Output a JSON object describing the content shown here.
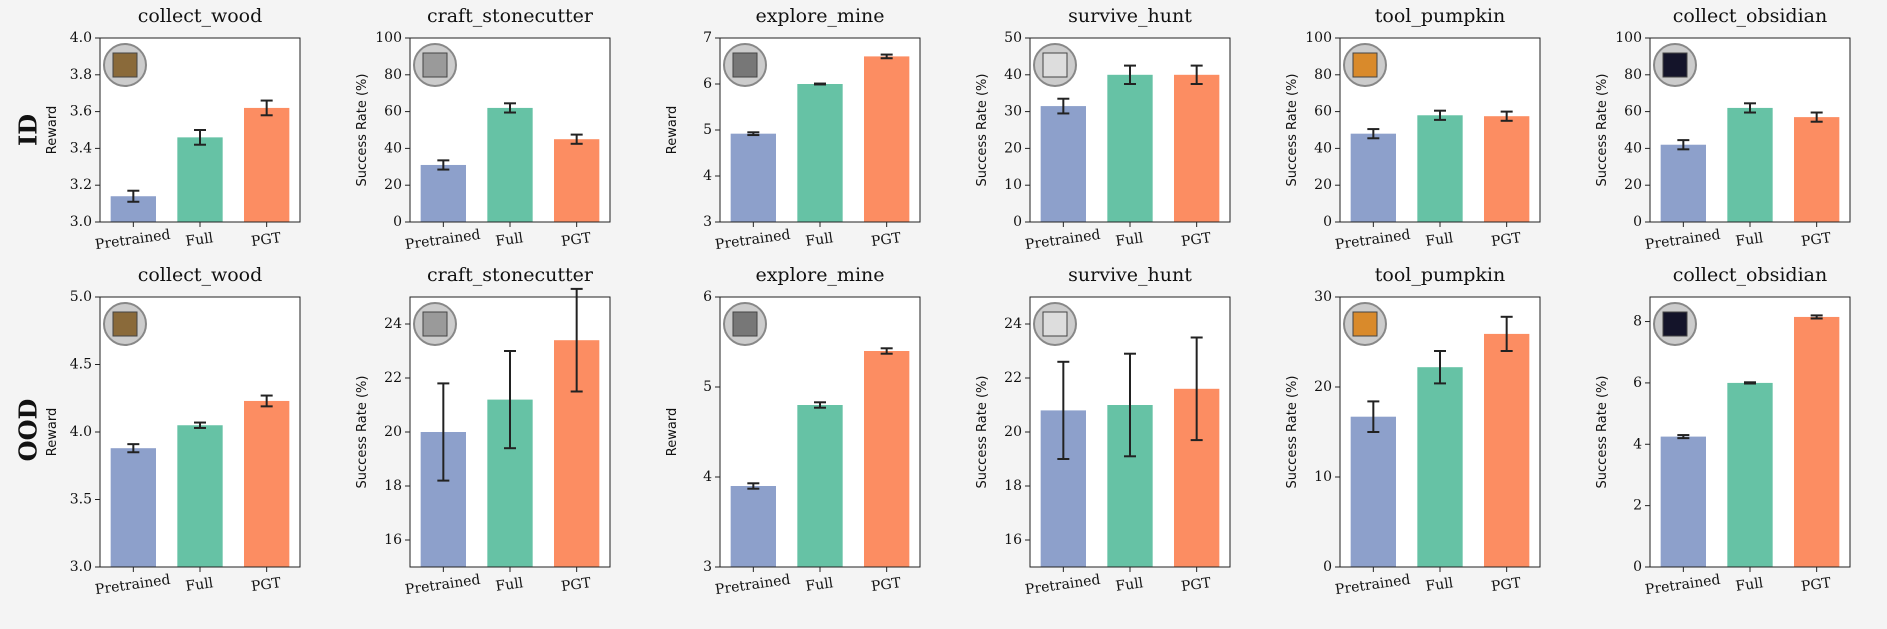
{
  "row_labels": [
    "ID",
    "OOD"
  ],
  "chart_data": [
    {
      "type": "bar",
      "title": "collect_wood",
      "ylabel": "Reward",
      "categories": [
        "Pretrained",
        "Full",
        "PGT"
      ],
      "values": [
        3.14,
        3.46,
        3.62
      ],
      "errors": [
        0.03,
        0.04,
        0.04
      ],
      "colors": [
        "#8da0cb",
        "#66c2a5",
        "#fc8d62"
      ],
      "ylim": [
        3,
        4
      ],
      "yticks": [
        {
          "value": 3,
          "label": "3.0"
        },
        3.2,
        3.4,
        3.6,
        3.8,
        {
          "value": 4,
          "label": "4.0"
        }
      ]
    },
    {
      "type": "bar",
      "title": "craft_stonecutter",
      "ylabel": "Success Rate (%)",
      "categories": [
        "Pretrained",
        "Full",
        "PGT"
      ],
      "values": [
        31,
        62,
        45
      ],
      "errors": [
        2.5,
        2.5,
        2.5
      ],
      "colors": [
        "#8da0cb",
        "#66c2a5",
        "#fc8d62"
      ],
      "ylim": [
        0,
        100
      ],
      "yticks": [
        0,
        20,
        40,
        60,
        80,
        100
      ]
    },
    {
      "type": "bar",
      "title": "explore_mine",
      "ylabel": "Reward",
      "categories": [
        "Pretrained",
        "Full",
        "PGT"
      ],
      "values": [
        4.92,
        6.0,
        6.6
      ],
      "errors": [
        0.03,
        0.01,
        0.04
      ],
      "colors": [
        "#8da0cb",
        "#66c2a5",
        "#fc8d62"
      ],
      "ylim": [
        3,
        7
      ],
      "yticks": [
        3,
        4,
        5,
        6,
        7
      ]
    },
    {
      "type": "bar",
      "title": "survive_hunt",
      "ylabel": "Success Rate (%)",
      "categories": [
        "Pretrained",
        "Full",
        "PGT"
      ],
      "values": [
        31.5,
        40,
        40
      ],
      "errors": [
        2,
        2.5,
        2.5
      ],
      "colors": [
        "#8da0cb",
        "#66c2a5",
        "#fc8d62"
      ],
      "ylim": [
        0,
        50
      ],
      "yticks": [
        0,
        10,
        20,
        30,
        40,
        50
      ]
    },
    {
      "type": "bar",
      "title": "tool_pumpkin",
      "ylabel": "Success Rate (%)",
      "categories": [
        "Pretrained",
        "Full",
        "PGT"
      ],
      "values": [
        48,
        58,
        57.5
      ],
      "errors": [
        2.5,
        2.5,
        2.5
      ],
      "colors": [
        "#8da0cb",
        "#66c2a5",
        "#fc8d62"
      ],
      "ylim": [
        0,
        100
      ],
      "yticks": [
        0,
        20,
        40,
        60,
        80,
        100
      ]
    },
    {
      "type": "bar",
      "title": "collect_obsidian",
      "ylabel": "Success Rate (%)",
      "categories": [
        "Pretrained",
        "Full",
        "PGT"
      ],
      "values": [
        42,
        62,
        57
      ],
      "errors": [
        2.5,
        2.5,
        2.5
      ],
      "colors": [
        "#8da0cb",
        "#66c2a5",
        "#fc8d62"
      ],
      "ylim": [
        0,
        100
      ],
      "yticks": [
        0,
        20,
        40,
        60,
        80,
        100
      ]
    },
    {
      "type": "bar",
      "title": "collect_wood",
      "ylabel": "Reward",
      "categories": [
        "Pretrained",
        "Full",
        "PGT"
      ],
      "values": [
        3.88,
        4.05,
        4.23
      ],
      "errors": [
        0.03,
        0.02,
        0.04
      ],
      "colors": [
        "#8da0cb",
        "#66c2a5",
        "#fc8d62"
      ],
      "ylim": [
        3,
        5
      ],
      "yticks": [
        {
          "value": 3,
          "label": "3.0"
        },
        3.5,
        {
          "value": 4,
          "label": "4.0"
        },
        4.5,
        {
          "value": 5,
          "label": "5.0"
        }
      ]
    },
    {
      "type": "bar",
      "title": "craft_stonecutter",
      "ylabel": "Success Rate (%)",
      "categories": [
        "Pretrained",
        "Full",
        "PGT"
      ],
      "values": [
        20,
        21.2,
        23.4
      ],
      "errors": [
        1.8,
        1.8,
        1.9
      ],
      "colors": [
        "#8da0cb",
        "#66c2a5",
        "#fc8d62"
      ],
      "ylim": [
        15,
        25
      ],
      "yticks": [
        16,
        18,
        20,
        22,
        24
      ]
    },
    {
      "type": "bar",
      "title": "explore_mine",
      "ylabel": "Reward",
      "categories": [
        "Pretrained",
        "Full",
        "PGT"
      ],
      "values": [
        3.9,
        4.8,
        5.4
      ],
      "errors": [
        0.03,
        0.03,
        0.03
      ],
      "colors": [
        "#8da0cb",
        "#66c2a5",
        "#fc8d62"
      ],
      "ylim": [
        3,
        6
      ],
      "yticks": [
        3,
        4,
        5,
        6
      ]
    },
    {
      "type": "bar",
      "title": "survive_hunt",
      "ylabel": "Success Rate (%)",
      "categories": [
        "Pretrained",
        "Full",
        "PGT"
      ],
      "values": [
        20.8,
        21,
        21.6
      ],
      "errors": [
        1.8,
        1.9,
        1.9
      ],
      "colors": [
        "#8da0cb",
        "#66c2a5",
        "#fc8d62"
      ],
      "ylim": [
        15,
        25
      ],
      "yticks": [
        16,
        18,
        20,
        22,
        24
      ]
    },
    {
      "type": "bar",
      "title": "tool_pumpkin",
      "ylabel": "Success Rate (%)",
      "categories": [
        "Pretrained",
        "Full",
        "PGT"
      ],
      "values": [
        16.7,
        22.2,
        25.9
      ],
      "errors": [
        1.7,
        1.8,
        1.9
      ],
      "colors": [
        "#8da0cb",
        "#66c2a5",
        "#fc8d62"
      ],
      "ylim": [
        0,
        30
      ],
      "yticks": [
        0,
        10,
        20,
        30
      ]
    },
    {
      "type": "bar",
      "title": "collect_obsidian",
      "ylabel": "Success Rate (%)",
      "categories": [
        "Pretrained",
        "Full",
        "PGT"
      ],
      "values": [
        4.25,
        6.0,
        8.15
      ],
      "errors": [
        0.05,
        0.02,
        0.05
      ],
      "colors": [
        "#8da0cb",
        "#66c2a5",
        "#fc8d62"
      ],
      "ylim": [
        0,
        8.8
      ],
      "yticks": [
        0,
        2,
        4,
        6,
        8
      ]
    }
  ]
}
